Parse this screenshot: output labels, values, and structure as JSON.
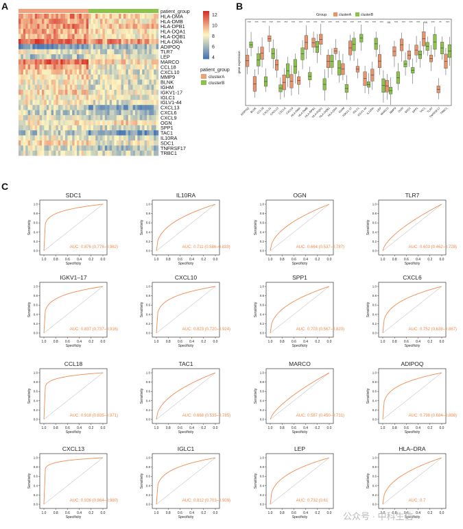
{
  "panels": {
    "a": "A",
    "b": "B",
    "c": "C"
  },
  "heatmap": {
    "annotation_label": "patient_group",
    "genes": [
      "HLA-DMA",
      "HLA-DMB",
      "HLA-DPB1",
      "HLA-DQA1",
      "HLA-DQB1",
      "HLA-DRA",
      "ADIPOQ",
      "TLR7",
      "LEP",
      "MARCO",
      "CCL18",
      "CXCL10",
      "MMP9",
      "BLNK",
      "IGHM",
      "IGKV1-17",
      "IGLC1",
      "IGLV1-44",
      "CXCL13",
      "CXCL6",
      "CXCL9",
      "OGN",
      "SPP1",
      "TAC1",
      "IL10RA",
      "SDC1",
      "TNFRSF17",
      "TRBC1"
    ],
    "colorbar_ticks": [
      "12",
      "10",
      "8",
      "6",
      "4"
    ],
    "legend_title": "patient_group",
    "legend_items": [
      "clusterA",
      "clusterB"
    ],
    "colors": {
      "clusterA": "#f0a17c",
      "clusterB": "#8cc24a",
      "high": "#d73027",
      "mid": "#fff6c0",
      "low": "#4575b4"
    }
  },
  "boxplot": {
    "legend_title": "Group",
    "legend_items": [
      "clusterA",
      "clusterB"
    ],
    "ylabel": "gene expression",
    "sig_marks": [
      "***",
      "***",
      "***",
      "***",
      "***",
      "***",
      "***",
      "***",
      "***",
      "***",
      "***",
      "***",
      "***",
      "***",
      "***",
      "***",
      "***",
      "***",
      "***",
      "ns",
      "***",
      "***",
      "***",
      "***",
      "ns",
      "***",
      "**",
      "***"
    ],
    "genes": [
      "ADIPOQ",
      "BLNK",
      "CCL18",
      "CXCL10",
      "CXCL13",
      "CXCL6",
      "CXCL9",
      "HLA-DMA",
      "HLA-DMB",
      "HLA-DPB1",
      "HLA-DQA1",
      "HLA-DQB1",
      "HLA-DRA",
      "IGHM",
      "IGKV1-17",
      "IGLC1",
      "IGLV1-44",
      "IL10RA",
      "LEP",
      "MARCO",
      "MMP9",
      "OGN",
      "SDC1",
      "SPP1",
      "TAC1",
      "TLR7",
      "TNFRSF17",
      "TRBC1"
    ]
  },
  "roc": {
    "xlabel": "Specificity",
    "ylabel": "Sensitivity",
    "x_ticks": [
      "1.0",
      "0.8",
      "0.6",
      "0.4",
      "0.2",
      "0.0"
    ],
    "y_ticks": [
      "1.0",
      "0.8",
      "0.6",
      "0.4",
      "0.2",
      "0.0"
    ],
    "auc_prefix": "AUC:",
    "line_color": "#f08a4b"
  },
  "chart_data": [
    {
      "type": "line",
      "title": "SDC1",
      "auc": "0.876 (0.778–0.962)",
      "xlim": [
        1,
        0
      ],
      "ylim": [
        0,
        1
      ]
    },
    {
      "type": "line",
      "title": "IL10RA",
      "auc": "0.711 (0.586–0.833)",
      "xlim": [
        1,
        0
      ],
      "ylim": [
        0,
        1
      ]
    },
    {
      "type": "line",
      "title": "OGN",
      "auc": "0.664 (0.537–0.787)",
      "xlim": [
        1,
        0
      ],
      "ylim": [
        0,
        1
      ]
    },
    {
      "type": "line",
      "title": "TLR7",
      "auc": "0.603 (0.462–0.728)",
      "xlim": [
        1,
        0
      ],
      "ylim": [
        0,
        1
      ]
    },
    {
      "type": "line",
      "title": "IGKV1–17",
      "auc": "0.837 (0.737–0.916)",
      "xlim": [
        1,
        0
      ],
      "ylim": [
        0,
        1
      ]
    },
    {
      "type": "line",
      "title": "CXCL10",
      "auc": "0.823 (0.720–0.924)",
      "xlim": [
        1,
        0
      ],
      "ylim": [
        0,
        1
      ]
    },
    {
      "type": "line",
      "title": "SPP1",
      "auc": "0.703 (0.567–0.820)",
      "xlim": [
        1,
        0
      ],
      "ylim": [
        0,
        1
      ]
    },
    {
      "type": "line",
      "title": "CXCL6",
      "auc": "0.752 (0.638–0.867)",
      "xlim": [
        1,
        0
      ],
      "ylim": [
        0,
        1
      ]
    },
    {
      "type": "line",
      "title": "CCL18",
      "auc": "0.918 (0.835–0.971)",
      "xlim": [
        1,
        0
      ],
      "ylim": [
        0,
        1
      ]
    },
    {
      "type": "line",
      "title": "TAC1",
      "auc": "0.668 (0.535–0.785)",
      "xlim": [
        1,
        0
      ],
      "ylim": [
        0,
        1
      ]
    },
    {
      "type": "line",
      "title": "MARCO",
      "auc": "0.587 (0.450–0.731)",
      "xlim": [
        1,
        0
      ],
      "ylim": [
        0,
        1
      ]
    },
    {
      "type": "line",
      "title": "ADIPOQ",
      "auc": "0.798 (0.684–0.898)",
      "xlim": [
        1,
        0
      ],
      "ylim": [
        0,
        1
      ]
    },
    {
      "type": "line",
      "title": "CXCL13",
      "auc": "0.936 (0.864–0.980)",
      "xlim": [
        1,
        0
      ],
      "ylim": [
        0,
        1
      ]
    },
    {
      "type": "line",
      "title": "IGLC1",
      "auc": "0.812 (0.703–0.909)",
      "xlim": [
        1,
        0
      ],
      "ylim": [
        0,
        1
      ]
    },
    {
      "type": "line",
      "title": "LEP",
      "auc": "0.732 (0.61",
      "xlim": [
        1,
        0
      ],
      "ylim": [
        0,
        1
      ]
    },
    {
      "type": "line",
      "title": "HLA–DRA",
      "auc": "0.7",
      "xlim": [
        1,
        0
      ],
      "ylim": [
        0,
        1
      ]
    }
  ],
  "footer": {
    "watermark": "公众号 · 中科生信"
  }
}
